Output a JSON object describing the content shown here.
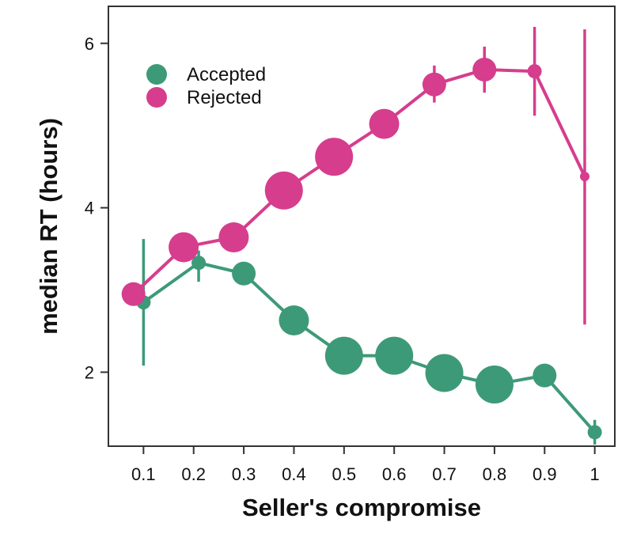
{
  "chart_data": {
    "type": "scatter",
    "title": "",
    "xlabel": "Seller's compromise",
    "ylabel": "median RT (hours)",
    "xlim": [
      0.03,
      1.04
    ],
    "ylim": [
      1.1,
      6.45
    ],
    "x_ticks": [
      "0.1",
      "0.2",
      "0.3",
      "0.4",
      "0.5",
      "0.6",
      "0.7",
      "0.8",
      "0.9",
      "1"
    ],
    "y_ticks": [
      "2",
      "4",
      "6"
    ],
    "grid": false,
    "legend_position": "top-left",
    "series": [
      {
        "name": "Accepted",
        "color": "#3d9a78",
        "points": [
          {
            "x": 0.1,
            "y": 2.85,
            "ylow": 2.08,
            "yhigh": 3.62,
            "size": "small"
          },
          {
            "x": 0.21,
            "y": 3.33,
            "ylow": 3.1,
            "yhigh": 3.48,
            "size": "small"
          },
          {
            "x": 0.3,
            "y": 3.2,
            "ylow": 3.08,
            "yhigh": 3.3,
            "size": "medium"
          },
          {
            "x": 0.4,
            "y": 2.63,
            "size": "large"
          },
          {
            "x": 0.5,
            "y": 2.2,
            "size": "xlarge"
          },
          {
            "x": 0.6,
            "y": 2.2,
            "size": "xlarge"
          },
          {
            "x": 0.7,
            "y": 1.99,
            "size": "xlarge"
          },
          {
            "x": 0.8,
            "y": 1.85,
            "size": "xlarge"
          },
          {
            "x": 0.9,
            "y": 1.96,
            "size": "medium"
          },
          {
            "x": 1.0,
            "y": 1.27,
            "ylow": 1.12,
            "yhigh": 1.42,
            "size": "small"
          }
        ]
      },
      {
        "name": "Rejected",
        "color": "#d63d8d",
        "points": [
          {
            "x": 0.08,
            "y": 2.95,
            "size": "medium"
          },
          {
            "x": 0.18,
            "y": 3.52,
            "size": "large"
          },
          {
            "x": 0.28,
            "y": 3.64,
            "size": "large"
          },
          {
            "x": 0.38,
            "y": 4.21,
            "size": "xlarge"
          },
          {
            "x": 0.48,
            "y": 4.62,
            "size": "xlarge"
          },
          {
            "x": 0.58,
            "y": 5.02,
            "size": "large"
          },
          {
            "x": 0.68,
            "y": 5.5,
            "ylow": 5.28,
            "yhigh": 5.73,
            "size": "medium"
          },
          {
            "x": 0.78,
            "y": 5.68,
            "ylow": 5.4,
            "yhigh": 5.96,
            "size": "medium"
          },
          {
            "x": 0.88,
            "y": 5.66,
            "ylow": 5.12,
            "yhigh": 6.2,
            "size": "small"
          },
          {
            "x": 0.98,
            "y": 4.38,
            "ylow": 2.58,
            "yhigh": 6.17,
            "size": "xsmall"
          }
        ]
      }
    ]
  }
}
